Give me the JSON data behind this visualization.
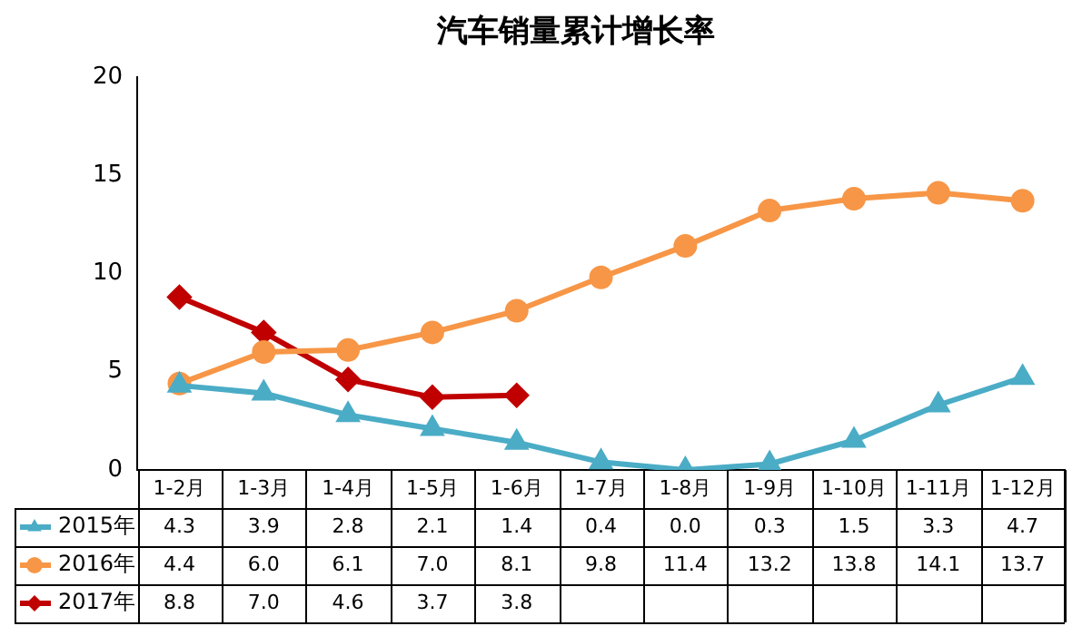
{
  "chart_data": {
    "type": "line",
    "title": "汽车销量累计增长率",
    "categories": [
      "1-2月",
      "1-3月",
      "1-4月",
      "1-5月",
      "1-6月",
      "1-7月",
      "1-8月",
      "1-9月",
      "1-10月",
      "1-11月",
      "1-12月"
    ],
    "series": [
      {
        "name": "2015年",
        "color": "#4bacc6",
        "marker": "triangle",
        "values": [
          4.3,
          3.9,
          2.8,
          2.1,
          1.4,
          0.4,
          0.0,
          0.3,
          1.5,
          3.3,
          4.7
        ],
        "value_labels": [
          "4.3",
          "3.9",
          "2.8",
          "2.1",
          "1.4",
          "0.4",
          "0.0",
          "0.3",
          "1.5",
          "3.3",
          "4.7"
        ]
      },
      {
        "name": "2016年",
        "color": "#f79646",
        "marker": "circle",
        "values": [
          4.4,
          6.0,
          6.1,
          7.0,
          8.1,
          9.8,
          11.4,
          13.2,
          13.8,
          14.1,
          13.7
        ],
        "value_labels": [
          "4.4",
          "6.0",
          "6.1",
          "7.0",
          "8.1",
          "9.8",
          "11.4",
          "13.2",
          "13.8",
          "14.1",
          "13.7"
        ]
      },
      {
        "name": "2017年",
        "color": "#c00000",
        "marker": "diamond",
        "values": [
          8.8,
          7.0,
          4.6,
          3.7,
          3.8,
          null,
          null,
          null,
          null,
          null,
          null
        ],
        "value_labels": [
          "8.8",
          "7.0",
          "4.6",
          "3.7",
          "3.8",
          null,
          null,
          null,
          null,
          null,
          null
        ]
      }
    ],
    "ylim": [
      0,
      20
    ],
    "yticks": [
      0,
      5,
      10,
      15,
      20
    ],
    "grid": false,
    "legend": "bottom",
    "line_style": "solid"
  }
}
